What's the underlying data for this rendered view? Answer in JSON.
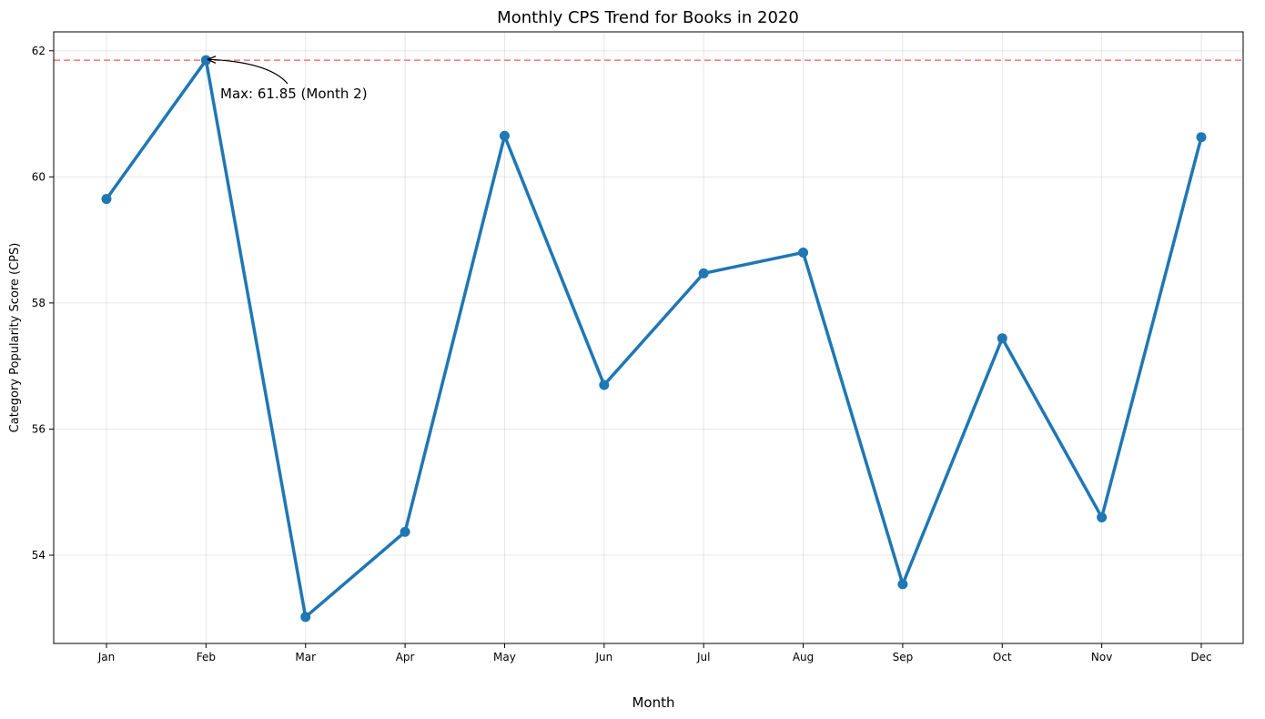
{
  "chart_data": {
    "type": "line",
    "title": "Monthly CPS Trend for Books in 2020",
    "xlabel": "Month",
    "ylabel": "Category Popularity Score (CPS)",
    "categories": [
      "Jan",
      "Feb",
      "Mar",
      "Apr",
      "May",
      "Jun",
      "Jul",
      "Aug",
      "Sep",
      "Oct",
      "Nov",
      "Dec"
    ],
    "series": [
      {
        "values": [
          59.65,
          61.85,
          53.02,
          54.37,
          60.65,
          56.7,
          58.47,
          58.8,
          53.54,
          57.44,
          54.6,
          60.63
        ],
        "color": "#1f77b4"
      }
    ],
    "ylim": [
      52.6,
      62.3
    ],
    "yticks": [
      54,
      56,
      58,
      60,
      62
    ],
    "grid": true,
    "reference_line": {
      "value": 61.85,
      "color": "#ff7f7f",
      "style": "dashed"
    },
    "annotation": {
      "text": "Max: 61.85 (Month 2)",
      "target_index": 1
    }
  }
}
